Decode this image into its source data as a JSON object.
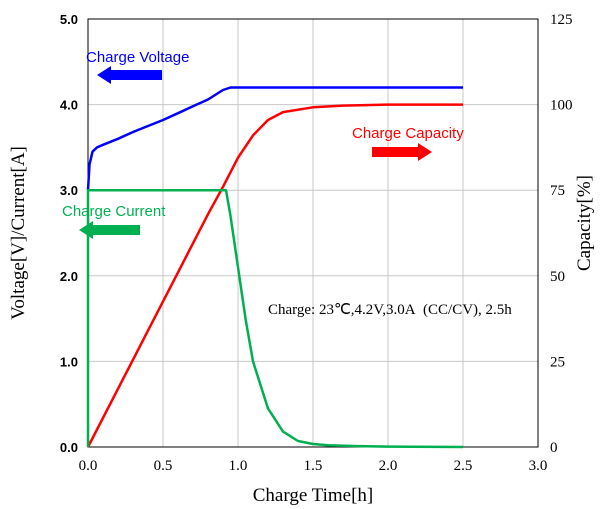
{
  "chart_data": {
    "type": "line",
    "title": "",
    "xlabel": "Charge Time[h]",
    "ylabel_left": "Voltage[V]/Current[A]",
    "ylabel_right": "Capacity[%]",
    "xlim": [
      0,
      3
    ],
    "ylim_left": [
      0,
      5
    ],
    "ylim_right": [
      0,
      125
    ],
    "x_ticks": [
      "0.0",
      "0.5",
      "1.0",
      "1.5",
      "2.0",
      "2.5",
      "3.0"
    ],
    "y_left_ticks": [
      "0.0",
      "1.0",
      "2.0",
      "3.0",
      "4.0",
      "5.0"
    ],
    "y_right_ticks": [
      "0",
      "25",
      "50",
      "75",
      "100",
      "125"
    ],
    "grid": true,
    "condition_note": "Charge: 23℃,4.2V,3.0A  (CC/CV), 2.5h",
    "colors": {
      "voltage": "#0000ff",
      "capacity": "#ff0000",
      "current": "#00b050"
    },
    "series": [
      {
        "name": "Charge Voltage",
        "axis": "left",
        "x": [
          0.0,
          0.01,
          0.03,
          0.06,
          0.1,
          0.2,
          0.3,
          0.4,
          0.5,
          0.6,
          0.7,
          0.8,
          0.9,
          0.95,
          1.0,
          1.5,
          2.0,
          2.5
        ],
        "y": [
          3.0,
          3.3,
          3.45,
          3.5,
          3.53,
          3.6,
          3.68,
          3.75,
          3.82,
          3.9,
          3.98,
          4.06,
          4.17,
          4.2,
          4.2,
          4.2,
          4.2,
          4.2
        ]
      },
      {
        "name": "Charge Capacity",
        "axis": "right",
        "x": [
          0.0,
          0.2,
          0.4,
          0.6,
          0.8,
          0.9,
          1.0,
          1.1,
          1.2,
          1.3,
          1.5,
          1.7,
          2.0,
          2.5
        ],
        "y": [
          0,
          17,
          34,
          51,
          68,
          76,
          84.5,
          91,
          95.5,
          97.8,
          99.2,
          99.7,
          100,
          100
        ]
      },
      {
        "name": "Charge Current",
        "axis": "left",
        "x": [
          0.0,
          0.0001,
          0.5,
          0.9,
          0.92,
          0.95,
          1.0,
          1.05,
          1.1,
          1.2,
          1.3,
          1.4,
          1.5,
          1.6,
          1.8,
          2.0,
          2.5
        ],
        "y": [
          0.0,
          3.0,
          3.0,
          3.0,
          3.0,
          2.7,
          2.1,
          1.5,
          1.0,
          0.45,
          0.18,
          0.07,
          0.035,
          0.02,
          0.01,
          0.005,
          0.0
        ]
      }
    ],
    "annotations": [
      {
        "text": "Charge Voltage",
        "series": "Charge Voltage",
        "arrow": "left"
      },
      {
        "text": "Charge Capacity",
        "series": "Charge Capacity",
        "arrow": "right"
      },
      {
        "text": "Charge Current",
        "series": "Charge Current",
        "arrow": "left"
      }
    ]
  }
}
